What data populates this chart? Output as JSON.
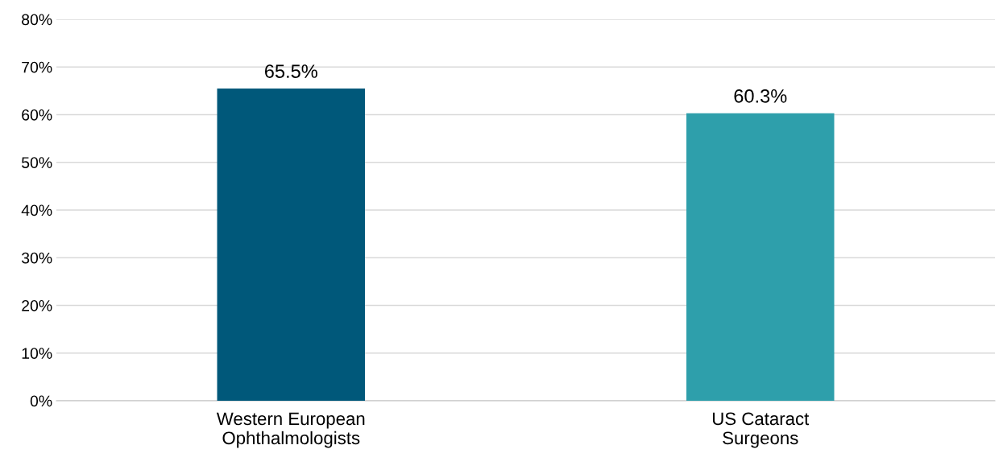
{
  "chart_data": {
    "type": "bar",
    "categories": [
      "Western European\nOphthalmologists",
      "US Cataract\nSurgeons"
    ],
    "values": [
      65.5,
      60.3
    ],
    "colors": [
      "#00587a",
      "#2e9fab"
    ],
    "value_labels": [
      "65.5%",
      "60.3%"
    ],
    "ylim": [
      0,
      80
    ],
    "yticks": [
      {
        "value": 0,
        "label": "0%"
      },
      {
        "value": 10,
        "label": "10%"
      },
      {
        "value": 20,
        "label": "20%"
      },
      {
        "value": 30,
        "label": "30%"
      },
      {
        "value": 40,
        "label": "40%"
      },
      {
        "value": 50,
        "label": "50%"
      },
      {
        "value": 60,
        "label": "60%"
      },
      {
        "value": 70,
        "label": "70%"
      },
      {
        "value": 80,
        "label": "80%"
      }
    ],
    "grid": "y"
  }
}
